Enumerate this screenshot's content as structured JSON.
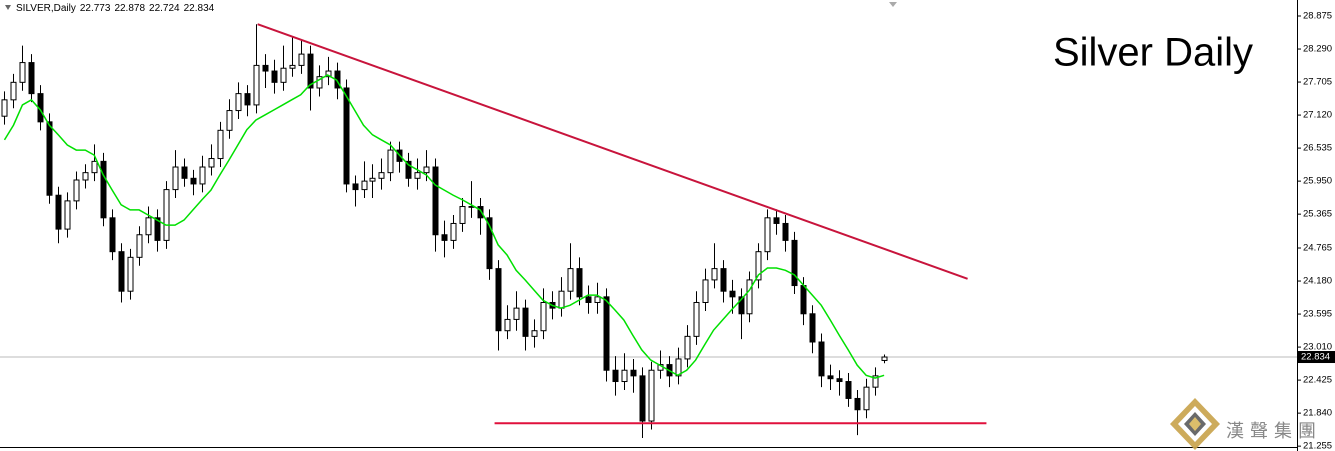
{
  "chart_data": {
    "type": "candlestick",
    "symbol": "SILVER,Daily",
    "title": "Silver Daily",
    "watermark": "漢聲集團",
    "bull_color": "#ffffff",
    "bear_color": "#000000",
    "open": [
      27.1,
      27.39,
      27.7,
      28.05,
      27.5,
      27.0,
      25.7,
      25.1,
      25.6,
      25.97,
      26.1,
      26.3,
      25.3,
      24.7,
      24.0,
      24.6,
      25.0,
      25.3,
      24.9,
      25.8,
      26.2,
      26.0,
      25.9,
      26.2,
      26.35,
      26.85,
      27.2,
      27.5,
      27.3,
      28.0,
      27.9,
      27.7,
      27.95,
      28.0,
      28.2,
      27.6,
      27.8,
      27.9,
      27.6,
      25.9,
      25.8,
      25.95,
      26.0,
      26.1,
      26.5,
      26.3,
      26.0,
      26.1,
      26.2,
      25.0,
      24.9,
      25.2,
      25.5,
      25.5,
      25.3,
      24.4,
      23.3,
      23.5,
      23.7,
      23.2,
      23.3,
      23.8,
      23.7,
      24.0,
      24.4,
      23.9,
      23.8,
      23.9,
      22.6,
      22.4,
      22.6,
      22.5,
      21.7,
      22.6,
      22.7,
      22.5,
      22.8,
      23.2,
      23.8,
      24.2,
      24.4,
      24.0,
      23.9,
      23.6,
      24.2,
      24.7,
      25.3,
      25.2,
      24.9,
      24.1,
      23.6,
      23.1,
      22.5,
      22.45,
      22.4,
      22.1,
      21.9,
      22.3,
      22.773
    ],
    "high": [
      27.54,
      27.85,
      28.35,
      28.2,
      27.65,
      27.15,
      25.85,
      25.75,
      26.12,
      26.25,
      26.6,
      26.45,
      25.45,
      24.85,
      24.75,
      25.15,
      25.5,
      25.45,
      25.95,
      26.5,
      26.35,
      26.15,
      26.4,
      26.6,
      27.0,
      27.4,
      27.7,
      27.65,
      28.73,
      28.2,
      28.1,
      28.35,
      28.5,
      28.45,
      28.35,
      28.0,
      28.15,
      28.05,
      27.75,
      26.05,
      26.3,
      26.25,
      26.35,
      26.65,
      26.65,
      26.45,
      26.35,
      26.5,
      26.35,
      25.25,
      25.35,
      25.65,
      25.95,
      25.65,
      25.45,
      24.55,
      23.75,
      24.0,
      23.85,
      23.5,
      24.05,
      24.0,
      24.25,
      24.85,
      24.6,
      24.1,
      24.15,
      24.05,
      22.85,
      22.9,
      22.8,
      22.65,
      22.75,
      22.95,
      22.85,
      23.0,
      23.4,
      24.0,
      24.4,
      24.85,
      24.55,
      24.2,
      24.05,
      24.35,
      24.85,
      25.45,
      25.45,
      25.35,
      25.05,
      24.25,
      23.75,
      23.25,
      22.7,
      22.6,
      22.55,
      22.25,
      22.45,
      22.65,
      22.878
    ],
    "low": [
      26.95,
      27.24,
      27.55,
      27.35,
      26.85,
      25.55,
      24.85,
      24.95,
      25.45,
      25.82,
      25.95,
      25.15,
      24.55,
      23.8,
      23.85,
      24.45,
      24.85,
      24.7,
      24.75,
      25.65,
      25.85,
      25.7,
      25.75,
      26.05,
      26.2,
      26.7,
      27.05,
      27.1,
      27.15,
      27.6,
      27.5,
      27.55,
      27.8,
      27.85,
      27.2,
      27.45,
      27.65,
      27.4,
      25.75,
      25.5,
      25.65,
      25.65,
      25.8,
      25.95,
      26.1,
      25.85,
      25.8,
      25.95,
      24.7,
      24.6,
      24.75,
      25.05,
      25.3,
      25.0,
      24.2,
      22.95,
      23.15,
      23.3,
      22.95,
      23.0,
      23.15,
      23.5,
      23.55,
      23.85,
      23.75,
      23.6,
      23.6,
      22.4,
      22.15,
      22.25,
      22.2,
      21.4,
      21.55,
      22.45,
      22.3,
      22.35,
      22.65,
      23.05,
      23.65,
      24.05,
      23.8,
      23.6,
      23.15,
      23.45,
      24.05,
      24.55,
      25.0,
      24.7,
      23.95,
      23.4,
      22.9,
      22.3,
      22.25,
      22.15,
      21.95,
      21.45,
      21.75,
      22.15,
      22.724
    ],
    "close": [
      27.39,
      27.7,
      28.05,
      27.5,
      27.0,
      25.7,
      25.1,
      25.6,
      25.97,
      26.1,
      26.3,
      25.3,
      24.7,
      24.0,
      24.6,
      25.0,
      25.3,
      24.9,
      25.8,
      26.2,
      26.0,
      25.9,
      26.2,
      26.35,
      26.85,
      27.2,
      27.5,
      27.3,
      28.0,
      27.9,
      27.7,
      27.95,
      28.0,
      28.2,
      27.6,
      27.8,
      27.9,
      27.6,
      25.9,
      25.8,
      25.95,
      26.0,
      26.1,
      26.5,
      26.3,
      26.0,
      26.1,
      26.2,
      25.0,
      24.9,
      25.2,
      25.5,
      25.5,
      25.3,
      24.4,
      23.3,
      23.5,
      23.7,
      23.2,
      23.3,
      23.8,
      23.7,
      24.0,
      24.4,
      23.9,
      23.8,
      23.9,
      22.6,
      22.4,
      22.6,
      22.5,
      21.7,
      22.6,
      22.7,
      22.5,
      22.8,
      23.2,
      23.8,
      24.2,
      24.4,
      24.0,
      23.9,
      23.6,
      24.2,
      24.7,
      25.3,
      25.2,
      24.9,
      24.1,
      23.6,
      23.1,
      22.5,
      22.45,
      22.4,
      22.1,
      21.9,
      22.3,
      22.5,
      22.834
    ],
    "overlay_line": {
      "color": "#00e000",
      "values": [
        26.68,
        26.94,
        27.3,
        27.39,
        27.21,
        26.94,
        26.77,
        26.59,
        26.5,
        26.5,
        26.41,
        26.06,
        25.79,
        25.53,
        25.44,
        25.44,
        25.35,
        25.26,
        25.17,
        25.17,
        25.26,
        25.44,
        25.62,
        25.79,
        26.06,
        26.32,
        26.59,
        26.86,
        27.03,
        27.12,
        27.21,
        27.3,
        27.39,
        27.48,
        27.65,
        27.74,
        27.83,
        27.74,
        27.48,
        27.21,
        26.94,
        26.77,
        26.68,
        26.59,
        26.41,
        26.24,
        26.15,
        26.06,
        25.88,
        25.79,
        25.7,
        25.62,
        25.53,
        25.44,
        25.17,
        24.82,
        24.64,
        24.37,
        24.2,
        24.02,
        23.84,
        23.75,
        23.7,
        23.75,
        23.84,
        23.93,
        23.93,
        23.84,
        23.67,
        23.49,
        23.22,
        22.96,
        22.78,
        22.69,
        22.6,
        22.51,
        22.6,
        22.78,
        23.05,
        23.31,
        23.49,
        23.67,
        23.84,
        24.02,
        24.29,
        24.41,
        24.41,
        24.37,
        24.29,
        24.11,
        23.93,
        23.75,
        23.49,
        23.22,
        22.96,
        22.69,
        22.51,
        22.46,
        22.51
      ]
    },
    "trendlines": [
      {
        "color": "#c8143c",
        "x": [
          28.2,
          107.3
        ],
        "y": [
          28.73,
          24.22
        ]
      },
      {
        "color": "#e0103c",
        "x": [
          54.6,
          109.4
        ],
        "y": [
          21.66,
          21.66
        ]
      }
    ],
    "xlim": [
      -0.5,
      144
    ],
    "ylim": [
      21.24,
      29.07
    ],
    "yticks": [
      28.875,
      {
        "value": 28.29,
        "label": "28.290"
      },
      27.705,
      {
        "value": 27.12,
        "label": "27.120"
      },
      26.535,
      {
        "value": 25.95,
        "label": "25.950"
      },
      25.365,
      24.765,
      {
        "value": 24.18,
        "label": "24.180"
      },
      23.595,
      {
        "value": 23.01,
        "label": "23.010"
      },
      22.425,
      {
        "value": 21.84,
        "label": "21.840"
      },
      21.255
    ]
  }
}
